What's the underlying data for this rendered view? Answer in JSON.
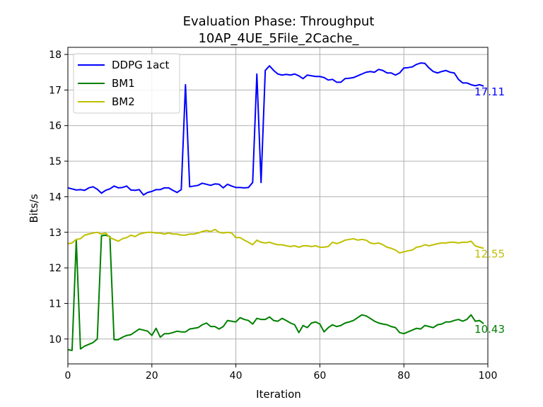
{
  "chart_data": {
    "type": "line",
    "title_line1": "Evaluation Phase: Throughput",
    "title_line2": "10AP_4UE_5File_2Cache_",
    "xlabel": "Iteration",
    "ylabel": "Bits/s",
    "xlim": [
      0,
      100
    ],
    "ylim": [
      9.3,
      18.2
    ],
    "xticks": [
      "0",
      "20",
      "40",
      "60",
      "80",
      "100"
    ],
    "yticks": [
      "10",
      "11",
      "12",
      "13",
      "14",
      "15",
      "16",
      "17",
      "18"
    ],
    "grid": true,
    "legend_position": "upper-left",
    "series": [
      {
        "name": "DDPG 1act",
        "color": "#0000ff",
        "end_label": "17.11",
        "x": [
          0,
          1,
          2,
          3,
          4,
          5,
          6,
          7,
          8,
          9,
          10,
          11,
          12,
          13,
          14,
          15,
          16,
          17,
          18,
          19,
          20,
          21,
          22,
          23,
          24,
          25,
          26,
          27,
          28,
          29,
          30,
          31,
          32,
          33,
          34,
          35,
          36,
          37,
          38,
          39,
          40,
          41,
          42,
          43,
          44,
          45,
          46,
          47,
          48,
          49,
          50,
          51,
          52,
          53,
          54,
          55,
          56,
          57,
          58,
          59,
          60,
          61,
          62,
          63,
          64,
          65,
          66,
          67,
          68,
          69,
          70,
          71,
          72,
          73,
          74,
          75,
          76,
          77,
          78,
          79,
          80,
          81,
          82,
          83,
          84,
          85,
          86,
          87,
          88,
          89,
          90,
          91,
          92,
          93,
          94,
          95,
          96,
          97,
          98,
          99
        ],
        "values": [
          14.25,
          14.22,
          14.19,
          14.2,
          14.18,
          14.25,
          14.28,
          14.21,
          14.1,
          14.18,
          14.22,
          14.3,
          14.25,
          14.26,
          14.3,
          14.19,
          14.18,
          14.2,
          14.05,
          14.12,
          14.15,
          14.2,
          14.2,
          14.25,
          14.25,
          14.18,
          14.12,
          14.2,
          17.15,
          14.28,
          14.3,
          14.32,
          14.38,
          14.35,
          14.32,
          14.36,
          14.35,
          14.25,
          14.35,
          14.3,
          14.26,
          14.26,
          14.25,
          14.26,
          14.4,
          17.45,
          14.4,
          17.55,
          17.68,
          17.55,
          17.45,
          17.42,
          17.44,
          17.42,
          17.45,
          17.4,
          17.32,
          17.42,
          17.4,
          17.38,
          17.38,
          17.35,
          17.28,
          17.3,
          17.22,
          17.22,
          17.32,
          17.33,
          17.35,
          17.4,
          17.45,
          17.5,
          17.52,
          17.5,
          17.58,
          17.55,
          17.48,
          17.48,
          17.42,
          17.48,
          17.62,
          17.63,
          17.65,
          17.72,
          17.76,
          17.75,
          17.62,
          17.52,
          17.48,
          17.52,
          17.55,
          17.5,
          17.48,
          17.3,
          17.2,
          17.2,
          17.15,
          17.12,
          17.15,
          17.11
        ]
      },
      {
        "name": "BM1",
        "color": "#008000",
        "end_label": "10.43",
        "x": [
          0,
          1,
          2,
          3,
          4,
          5,
          6,
          7,
          8,
          9,
          10,
          11,
          12,
          13,
          14,
          15,
          16,
          17,
          18,
          19,
          20,
          21,
          22,
          23,
          24,
          25,
          26,
          27,
          28,
          29,
          30,
          31,
          32,
          33,
          34,
          35,
          36,
          37,
          38,
          39,
          40,
          41,
          42,
          43,
          44,
          45,
          46,
          47,
          48,
          49,
          50,
          51,
          52,
          53,
          54,
          55,
          56,
          57,
          58,
          59,
          60,
          61,
          62,
          63,
          64,
          65,
          66,
          67,
          68,
          69,
          70,
          71,
          72,
          73,
          74,
          75,
          76,
          77,
          78,
          79,
          80,
          81,
          82,
          83,
          84,
          85,
          86,
          87,
          88,
          89,
          90,
          91,
          92,
          93,
          94,
          95,
          96,
          97,
          98,
          99
        ],
        "values": [
          9.7,
          9.68,
          12.78,
          9.72,
          9.8,
          9.85,
          9.9,
          10.0,
          12.9,
          12.92,
          12.88,
          9.98,
          9.98,
          10.05,
          10.1,
          10.12,
          10.2,
          10.28,
          10.25,
          10.22,
          10.1,
          10.3,
          10.05,
          10.15,
          10.15,
          10.18,
          10.22,
          10.2,
          10.2,
          10.28,
          10.3,
          10.32,
          10.4,
          10.45,
          10.35,
          10.35,
          10.28,
          10.35,
          10.52,
          10.5,
          10.48,
          10.6,
          10.55,
          10.52,
          10.42,
          10.58,
          10.55,
          10.55,
          10.62,
          10.52,
          10.5,
          10.58,
          10.52,
          10.45,
          10.4,
          10.18,
          10.38,
          10.32,
          10.45,
          10.48,
          10.42,
          10.2,
          10.32,
          10.4,
          10.35,
          10.38,
          10.45,
          10.48,
          10.52,
          10.6,
          10.68,
          10.65,
          10.58,
          10.5,
          10.45,
          10.42,
          10.4,
          10.35,
          10.32,
          10.18,
          10.15,
          10.2,
          10.25,
          10.3,
          10.28,
          10.38,
          10.35,
          10.32,
          10.4,
          10.42,
          10.48,
          10.48,
          10.52,
          10.55,
          10.5,
          10.55,
          10.68,
          10.5,
          10.52,
          10.43
        ]
      },
      {
        "name": "BM2",
        "color": "#bfbf00",
        "end_label": "12.55",
        "x": [
          0,
          1,
          2,
          3,
          4,
          5,
          6,
          7,
          8,
          9,
          10,
          11,
          12,
          13,
          14,
          15,
          16,
          17,
          18,
          19,
          20,
          21,
          22,
          23,
          24,
          25,
          26,
          27,
          28,
          29,
          30,
          31,
          32,
          33,
          34,
          35,
          36,
          37,
          38,
          39,
          40,
          41,
          42,
          43,
          44,
          45,
          46,
          47,
          48,
          49,
          50,
          51,
          52,
          53,
          54,
          55,
          56,
          57,
          58,
          59,
          60,
          61,
          62,
          63,
          64,
          65,
          66,
          67,
          68,
          69,
          70,
          71,
          72,
          73,
          74,
          75,
          76,
          77,
          78,
          79,
          80,
          81,
          82,
          83,
          84,
          85,
          86,
          87,
          88,
          89,
          90,
          91,
          92,
          93,
          94,
          95,
          96,
          97,
          98,
          99
        ],
        "values": [
          12.68,
          12.7,
          12.8,
          12.82,
          12.92,
          12.95,
          12.98,
          13.0,
          12.95,
          12.98,
          12.85,
          12.8,
          12.75,
          12.82,
          12.85,
          12.92,
          12.88,
          12.95,
          12.98,
          13.0,
          13.0,
          12.98,
          12.98,
          12.95,
          12.98,
          12.95,
          12.95,
          12.92,
          12.92,
          12.95,
          12.95,
          12.98,
          13.02,
          13.05,
          13.02,
          13.08,
          13.0,
          12.98,
          13.0,
          12.98,
          12.85,
          12.85,
          12.78,
          12.72,
          12.65,
          12.78,
          12.72,
          12.7,
          12.72,
          12.68,
          12.65,
          12.65,
          12.62,
          12.6,
          12.62,
          12.58,
          12.62,
          12.62,
          12.6,
          12.62,
          12.58,
          12.58,
          12.6,
          12.72,
          12.68,
          12.72,
          12.78,
          12.8,
          12.82,
          12.78,
          12.8,
          12.78,
          12.7,
          12.68,
          12.7,
          12.65,
          12.58,
          12.55,
          12.5,
          12.42,
          12.45,
          12.48,
          12.5,
          12.58,
          12.6,
          12.65,
          12.62,
          12.65,
          12.68,
          12.7,
          12.7,
          12.72,
          12.72,
          12.7,
          12.72,
          12.72,
          12.75,
          12.62,
          12.58,
          12.55
        ]
      }
    ]
  }
}
